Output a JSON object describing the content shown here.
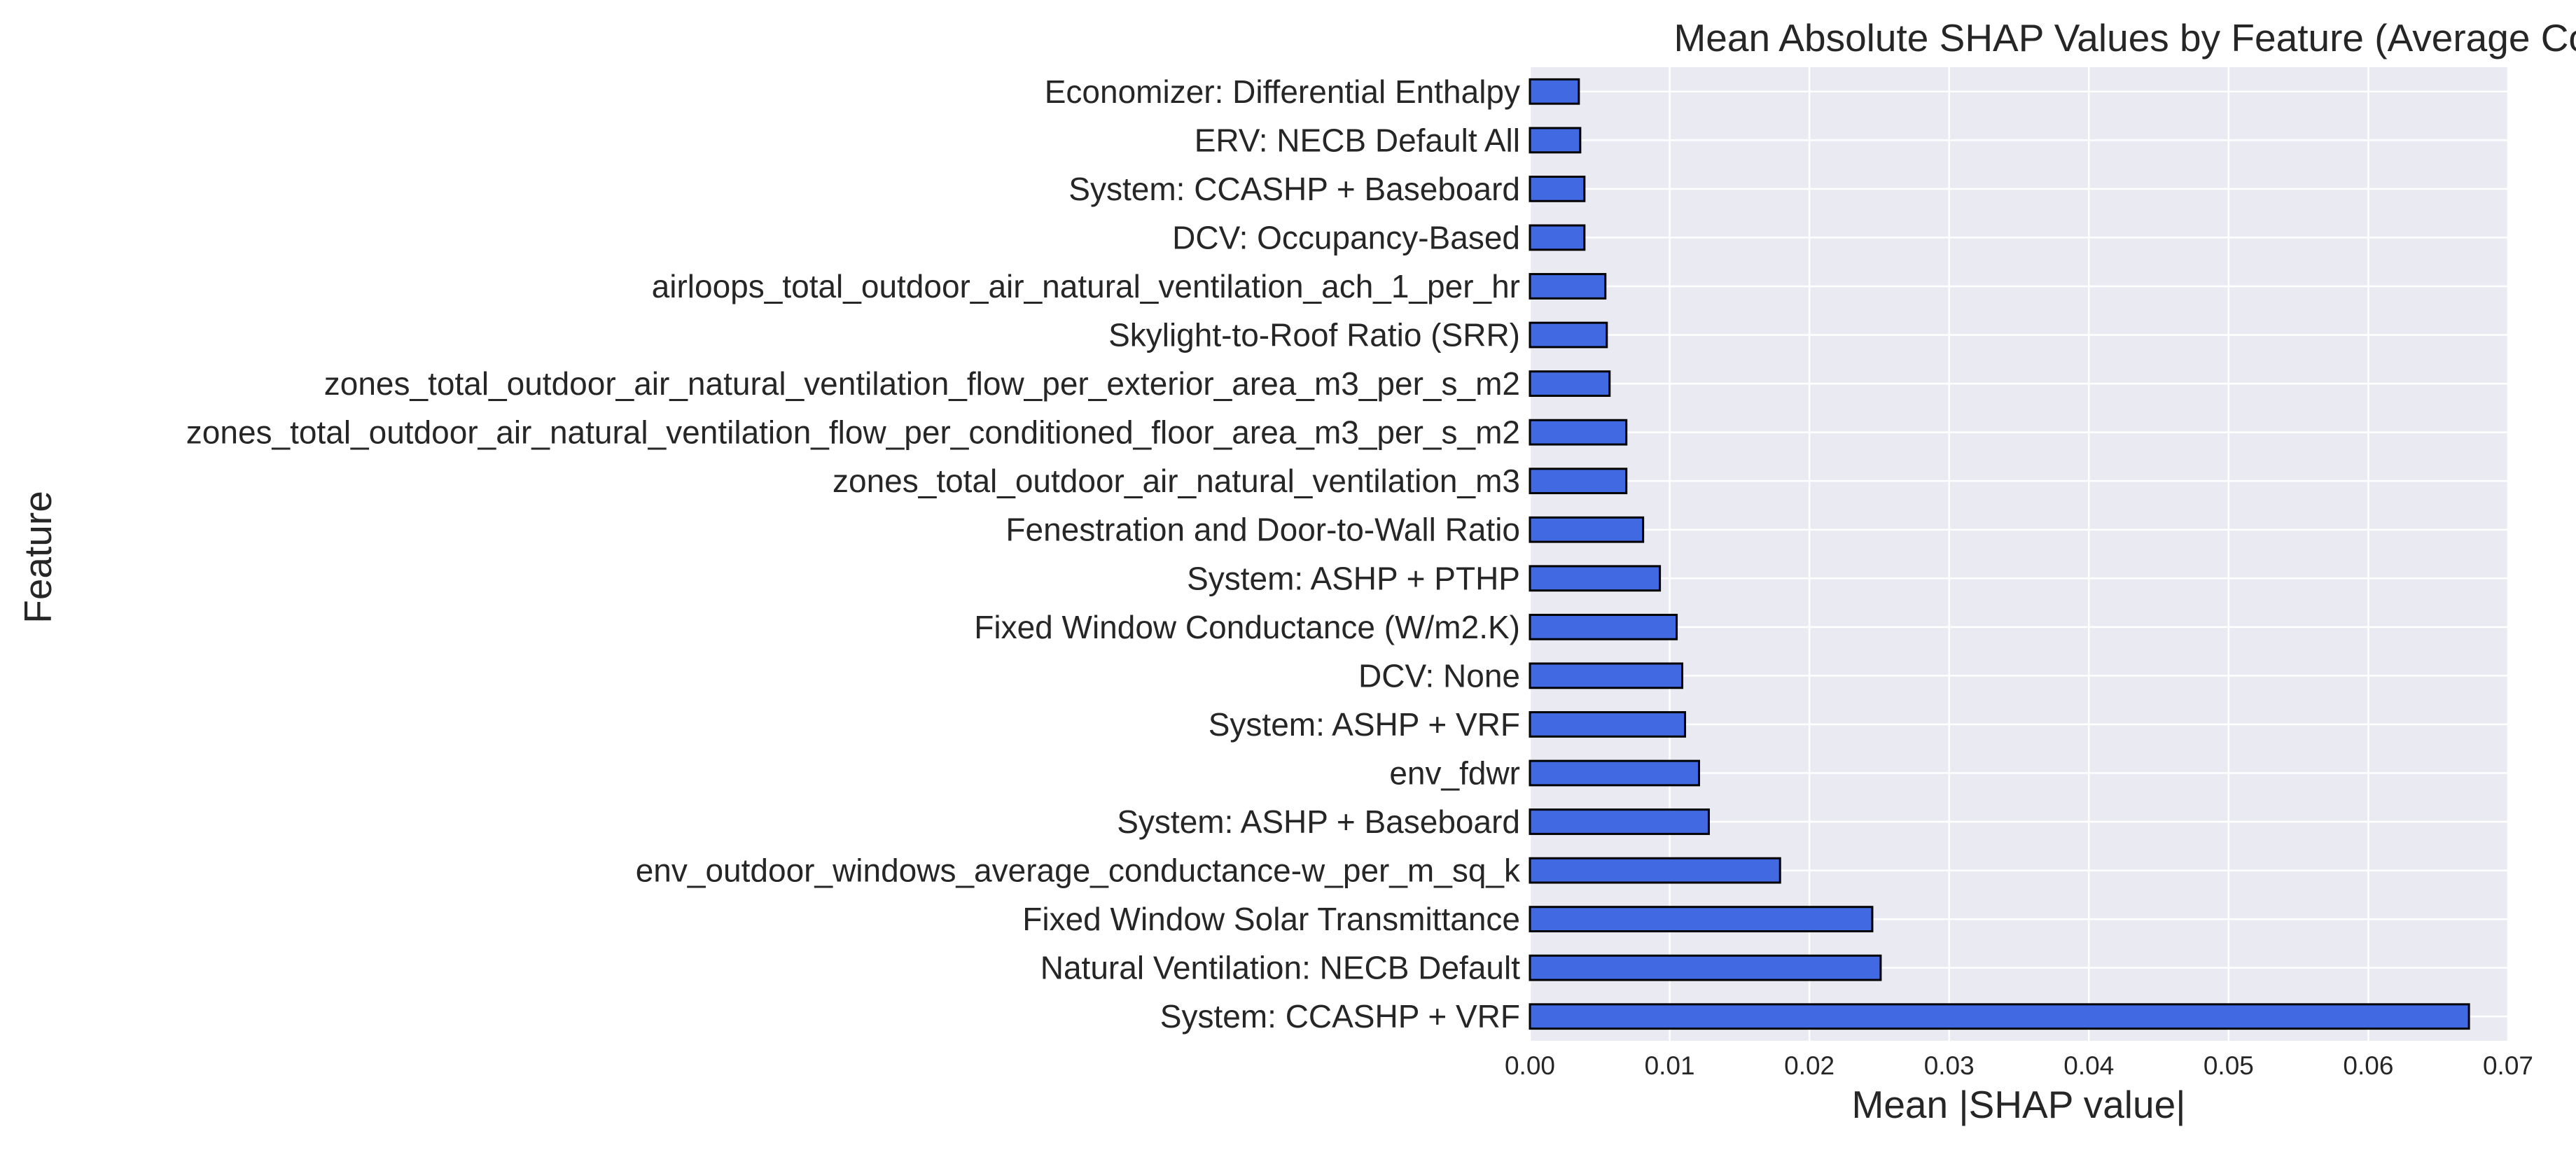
{
  "chart_data": {
    "type": "bar",
    "orientation": "horizontal",
    "title": "Mean Absolute SHAP Values by Feature (Average Costing)",
    "xlabel": "Mean |SHAP value|",
    "ylabel": "Feature",
    "xlim": [
      0,
      0.07
    ],
    "x_ticks": [
      "0.00",
      "0.01",
      "0.02",
      "0.03",
      "0.04",
      "0.05",
      "0.06",
      "0.07"
    ],
    "grid": true,
    "legend": "none",
    "colors": {
      "bar_fill": "#4169E1",
      "bar_edge": "#000000",
      "plot_background": "#EAEAF2",
      "grid": "#FFFFFF",
      "text": "#262626"
    },
    "categories": [
      "Economizer: Differential Enthalpy",
      "ERV: NECB Default All",
      "System: CCASHP + Baseboard",
      "DCV: Occupancy-Based",
      "airloops_total_outdoor_air_natural_ventilation_ach_1_per_hr",
      "Skylight-to-Roof Ratio (SRR)",
      "zones_total_outdoor_air_natural_ventilation_flow_per_exterior_area_m3_per_s_m2",
      "zones_total_outdoor_air_natural_ventilation_flow_per_conditioned_floor_area_m3_per_s_m2",
      "zones_total_outdoor_air_natural_ventilation_m3",
      "Fenestration and Door-to-Wall Ratio",
      "System: ASHP + PTHP",
      "Fixed Window Conductance (W/m2.K)",
      "DCV: None",
      "System: ASHP + VRF",
      "env_fdwr",
      "System: ASHP + Baseboard",
      "env_outdoor_windows_average_conductance-w_per_m_sq_k",
      "Fixed Window Solar Transmittance",
      "Natural Ventilation: NECB Default",
      "System: CCASHP + VRF"
    ],
    "values": [
      0.0035,
      0.0036,
      0.0039,
      0.0039,
      0.0054,
      0.0055,
      0.0057,
      0.0069,
      0.0069,
      0.0081,
      0.0093,
      0.0105,
      0.0109,
      0.0111,
      0.0121,
      0.0128,
      0.0179,
      0.0245,
      0.0251,
      0.0672
    ]
  }
}
